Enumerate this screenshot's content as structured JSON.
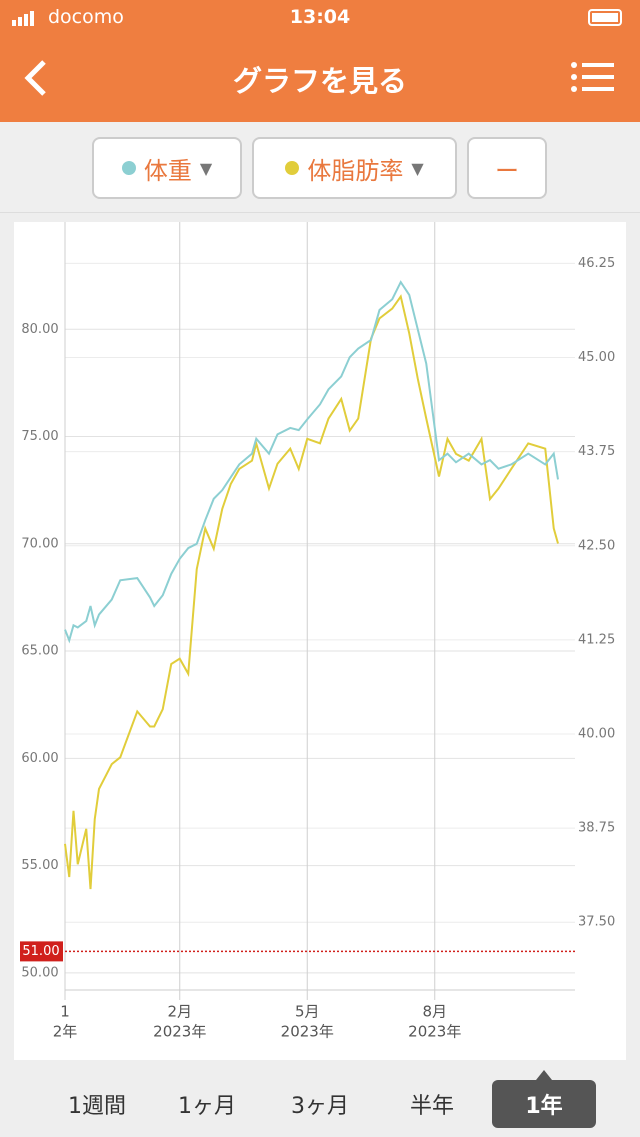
{
  "status_bar": {
    "carrier": "docomo",
    "time": "13:04"
  },
  "header": {
    "title": "グラフを見る"
  },
  "filters": {
    "third": "ー"
  },
  "chart_data": {
    "type": "line",
    "x": [
      0,
      1,
      2,
      3,
      5,
      6,
      7,
      8,
      11,
      13,
      17,
      20,
      21,
      23,
      25,
      27,
      29,
      31,
      33,
      35,
      37,
      39,
      41,
      44,
      45,
      48,
      50,
      53,
      55,
      57,
      60,
      62,
      65,
      67,
      69,
      72,
      74,
      77,
      79,
      81,
      83,
      85,
      88,
      90,
      92,
      95,
      98,
      100,
      102,
      105,
      109,
      113,
      115,
      116
    ],
    "xlim": [
      0,
      120
    ],
    "xticks": [
      {
        "value": 0,
        "label": [
          "1",
          "2年"
        ]
      },
      {
        "value": 27,
        "label": [
          "2月",
          "2023年"
        ]
      },
      {
        "value": 57,
        "label": [
          "5月",
          "2023年"
        ]
      },
      {
        "value": 87,
        "label": [
          "8月",
          "2023年"
        ]
      }
    ],
    "ylim": [
      49.2,
      85.0
    ],
    "yticks": [
      {
        "value": 50,
        "label": "50.00"
      },
      {
        "value": 55,
        "label": "55.00"
      },
      {
        "value": 60,
        "label": "60.00"
      },
      {
        "value": 65,
        "label": "65.00"
      },
      {
        "value": 70,
        "label": "70.00"
      },
      {
        "value": 75,
        "label": "75.00"
      },
      {
        "value": 80,
        "label": "80.00"
      }
    ],
    "y2lim": [
      36.6,
      46.8
    ],
    "y2ticks": [
      37.5,
      38.75,
      40,
      41.25,
      42.5,
      43.75,
      45,
      46.25
    ],
    "y2tick_labels": [
      "37.50",
      "38.75",
      "40.00",
      "41.25",
      "42.50",
      "43.75",
      "45.00",
      "46.25"
    ],
    "grid": true,
    "series": [
      {
        "name": "体重",
        "color": "#8ccfd2",
        "values": [
          66.0,
          65.5,
          66.2,
          66.1,
          66.4,
          67.1,
          66.2,
          66.7,
          67.4,
          68.3,
          68.4,
          67.5,
          67.1,
          67.6,
          68.6,
          69.3,
          69.8,
          70.0,
          71.1,
          72.1,
          72.5,
          73.1,
          73.7,
          74.2,
          74.9,
          74.2,
          75.1,
          75.4,
          75.3,
          75.8,
          76.5,
          77.2,
          77.8,
          78.7,
          79.1,
          79.5,
          80.9,
          81.4,
          82.2,
          81.6,
          80.0,
          78.4,
          73.9,
          74.2,
          73.8,
          74.2,
          73.7,
          73.9,
          73.5,
          73.7,
          74.2,
          73.7,
          74.2,
          73.0
        ]
      },
      {
        "name": "体脂肪率",
        "color": "#e1cd3b",
        "axis": "y2",
        "values": [
          38.54,
          38.1,
          38.98,
          38.27,
          38.74,
          37.94,
          38.87,
          39.27,
          39.6,
          39.69,
          40.3,
          40.1,
          40.1,
          40.33,
          40.93,
          41.0,
          40.8,
          42.19,
          42.73,
          42.46,
          42.99,
          43.32,
          43.52,
          43.63,
          43.86,
          43.26,
          43.59,
          43.79,
          43.52,
          43.92,
          43.86,
          44.19,
          44.45,
          44.03,
          44.19,
          45.25,
          45.52,
          45.65,
          45.81,
          45.32,
          44.72,
          44.19,
          43.42,
          43.92,
          43.72,
          43.63,
          43.92,
          43.12,
          43.26,
          43.52,
          43.86,
          43.79,
          42.73,
          42.53
        ]
      }
    ],
    "reference_line": {
      "value": 51,
      "label": "51.00",
      "color": "#d0201c"
    }
  },
  "period_tabs": {
    "options": [
      "1週間",
      "1ヶ月",
      "3ヶ月",
      "半年",
      "1年"
    ],
    "selected": 4
  }
}
